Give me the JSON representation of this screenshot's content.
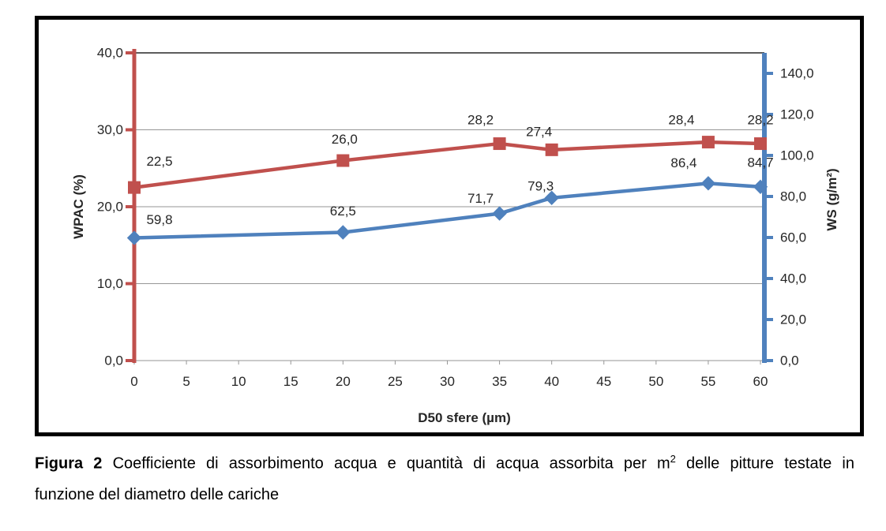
{
  "caption": {
    "label": "Figura 2",
    "line1_before_sup": " Coefficiente di assorbimento acqua e quantità di acqua assorbita per m",
    "sup": "2",
    "line1_after_sup": " delle pitture testate in",
    "line2": "funzione del diametro delle cariche"
  },
  "chart_data": {
    "type": "line",
    "x": [
      0,
      20,
      35,
      40,
      55,
      60
    ],
    "x_axis": {
      "label": "D50 sfere (µm)",
      "min": 0,
      "max": 60,
      "ticks": [
        0,
        5,
        10,
        15,
        20,
        25,
        30,
        35,
        40,
        45,
        50,
        55,
        60
      ],
      "tick_labels": [
        "0",
        "5",
        "10",
        "15",
        "20",
        "25",
        "30",
        "35",
        "40",
        "45",
        "50",
        "55",
        "60"
      ],
      "line_color": "#969696"
    },
    "left_axis": {
      "label": "WPAC (%)",
      "min": 0,
      "max": 40,
      "tick_step": 10,
      "ticks": [
        0,
        10,
        20,
        30,
        40
      ],
      "tick_labels": [
        "0,0",
        "10,0",
        "20,0",
        "30,0",
        "40,0"
      ],
      "color": "#C0504D"
    },
    "right_axis": {
      "label": "WS (g/m²)",
      "min": 0,
      "max": 150,
      "tick_step": 20,
      "ticks": [
        0,
        20,
        40,
        60,
        80,
        100,
        120,
        140
      ],
      "tick_labels": [
        "0,0",
        "20,0",
        "40,0",
        "60,0",
        "80,0",
        "100,0",
        "120,0",
        "140,0"
      ],
      "color": "#4F81BD"
    },
    "gridlines": {
      "color": "#969696",
      "top_line_color": "#262626",
      "values": [
        10,
        20,
        30
      ],
      "top_value": 40
    },
    "series": [
      {
        "name": "WPAC",
        "axis": "left",
        "color": "#C0504D",
        "marker": "square",
        "values": [
          22.5,
          26.0,
          28.2,
          27.4,
          28.4,
          28.2
        ],
        "labels": [
          "22,5",
          "26,0",
          "28,2",
          "27,4",
          "28,4",
          "28,2"
        ],
        "label_offsets": [
          [
            32,
            -33
          ],
          [
            2,
            -27
          ],
          [
            -24,
            -30
          ],
          [
            -16,
            -23
          ],
          [
            -34,
            -28
          ],
          [
            0,
            -30
          ]
        ]
      },
      {
        "name": "WS",
        "axis": "right",
        "color": "#4F81BD",
        "marker": "diamond",
        "values": [
          59.8,
          62.5,
          71.7,
          79.3,
          86.4,
          84.7
        ],
        "labels": [
          "59,8",
          "62,5",
          "71,7",
          "79,3",
          "86,4",
          "84,7"
        ],
        "label_offsets": [
          [
            32,
            -23
          ],
          [
            0,
            -27
          ],
          [
            -24,
            -19
          ],
          [
            -14,
            -15
          ],
          [
            -31,
            -26
          ],
          [
            0,
            -31
          ]
        ]
      }
    ],
    "text_color": "#262626"
  }
}
